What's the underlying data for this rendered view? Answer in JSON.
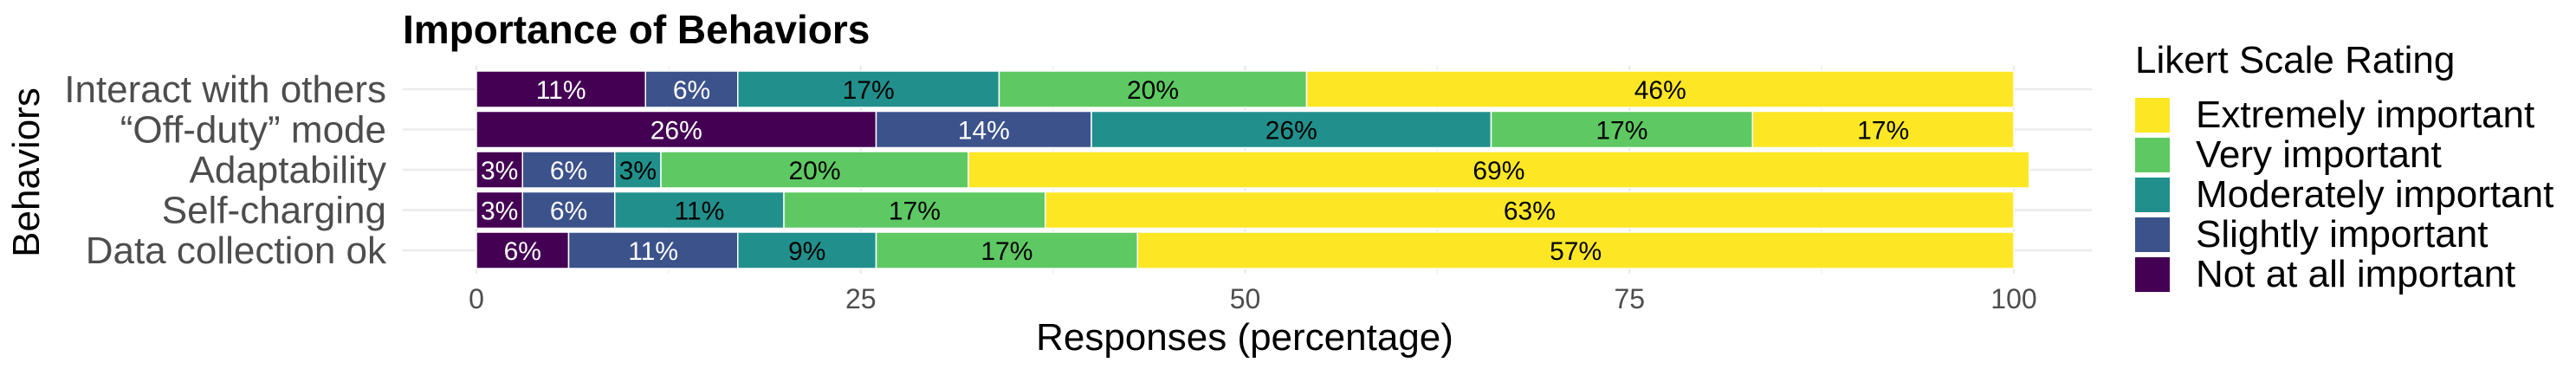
{
  "chart_data": {
    "type": "bar",
    "orientation": "horizontal",
    "stacked": true,
    "title": "Importance of Behaviors",
    "xlabel": "Responses (percentage)",
    "ylabel": "Behaviors",
    "xlim": [
      0,
      100
    ],
    "x_ticks": [
      0,
      25,
      50,
      75,
      100
    ],
    "categories": [
      "Interact with others",
      "“Off-duty” mode",
      "Adaptability",
      "Self-charging",
      "Data collection ok"
    ],
    "legend_title": "Likert Scale Rating",
    "legend_position": "right",
    "grid": true,
    "series": [
      {
        "name": "Not at all important",
        "color": "#440154",
        "values": [
          11,
          26,
          3,
          3,
          6
        ]
      },
      {
        "name": "Slightly important",
        "color": "#3b528b",
        "values": [
          6,
          14,
          6,
          6,
          11
        ]
      },
      {
        "name": "Moderately important",
        "color": "#21908c",
        "values": [
          17,
          26,
          3,
          11,
          9
        ]
      },
      {
        "name": "Very important",
        "color": "#5ec962",
        "values": [
          20,
          17,
          20,
          17,
          17
        ]
      },
      {
        "name": "Extremely important",
        "color": "#fde725",
        "values": [
          46,
          17,
          69,
          63,
          57
        ]
      }
    ],
    "legend_order": [
      "Extremely important",
      "Very important",
      "Moderately important",
      "Slightly important",
      "Not at all important"
    ]
  }
}
